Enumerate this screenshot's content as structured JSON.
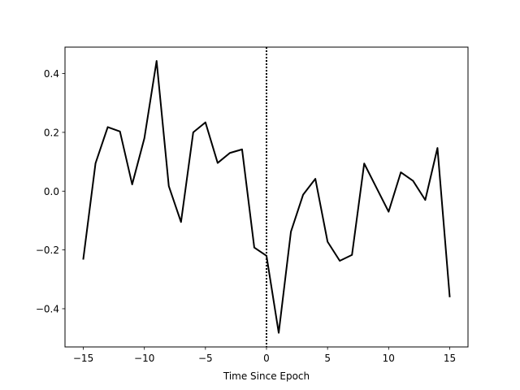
{
  "chart_data": {
    "type": "line",
    "title": "",
    "xlabel": "Time Since Epoch",
    "ylabel": "",
    "xlim": [
      -16.5,
      16.5
    ],
    "ylim": [
      -0.53,
      0.49
    ],
    "xticks": [
      -15,
      -10,
      -5,
      0,
      5,
      10,
      15
    ],
    "xtick_labels": [
      "−15",
      "−10",
      "−5",
      "0",
      "5",
      "10",
      "15"
    ],
    "yticks": [
      -0.4,
      -0.2,
      0.0,
      0.2,
      0.4
    ],
    "ytick_labels": [
      "−0.4",
      "−0.2",
      "0.0",
      "0.2",
      "0.4"
    ],
    "grid": false,
    "legend": false,
    "series": [
      {
        "color": "#000000",
        "x": [
          -15,
          -14,
          -13,
          -12,
          -11,
          -10,
          -9,
          -8,
          -7,
          -6,
          -5,
          -4,
          -3,
          -2,
          -1,
          0,
          1,
          2,
          3,
          4,
          5,
          6,
          7,
          8,
          9,
          10,
          11,
          12,
          13,
          14,
          15
        ],
        "y": [
          -0.23,
          0.095,
          0.218,
          0.203,
          0.023,
          0.18,
          0.443,
          0.017,
          -0.105,
          0.2,
          0.234,
          0.096,
          0.13,
          0.142,
          -0.192,
          -0.22,
          -0.482,
          -0.138,
          -0.012,
          0.042,
          -0.172,
          -0.237,
          -0.217,
          0.094,
          0.012,
          -0.07,
          0.064,
          0.035,
          -0.03,
          0.147,
          -0.358
        ]
      }
    ],
    "reference_line": {
      "x": 0,
      "style": "dotted",
      "color": "#000000"
    }
  }
}
